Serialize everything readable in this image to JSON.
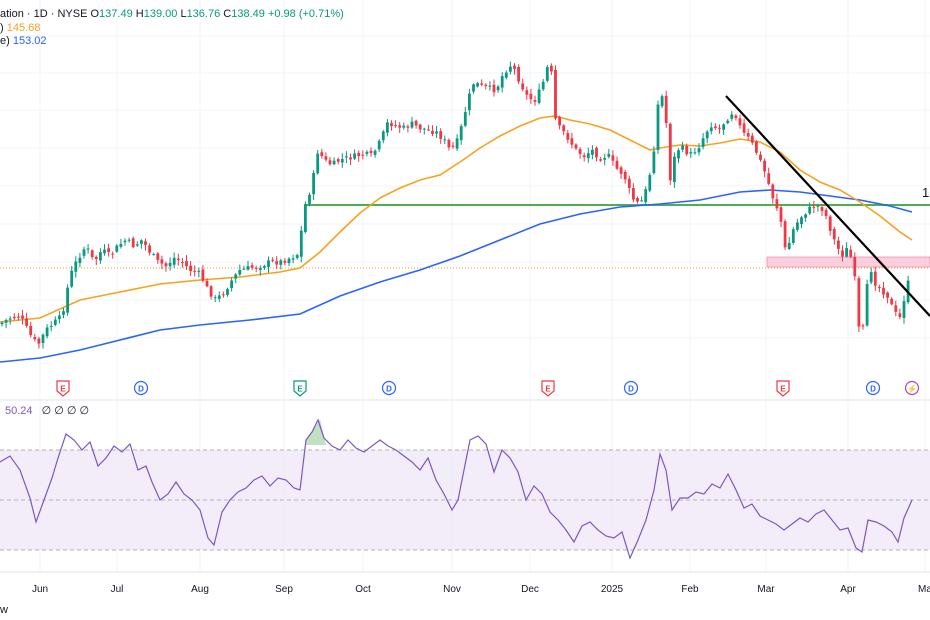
{
  "header": {
    "title_fragment": "ation · 1D · NYSE",
    "open_label": "O",
    "open": "137.49",
    "high_label": "H",
    "high": "139.00",
    "low_label": "L",
    "low": "136.76",
    "close_label": "C",
    "close": "138.49",
    "change": "+0.98 (+0.71%)",
    "ma1_fragment": ")",
    "ma1_value": "145.68",
    "ma2_fragment": "e)",
    "ma2_value": "153.02"
  },
  "rsi_legend": {
    "value": "50.24",
    "placeholders": "∅ ∅ ∅ ∅"
  },
  "x_axis_labels": [
    "Jun",
    "Jul",
    "Aug",
    "Sep",
    "Oct",
    "Nov",
    "Dec",
    "2025",
    "Feb",
    "Mar",
    "Apr",
    "Ma"
  ],
  "right_edge_label": "1",
  "events": [
    "E",
    "D",
    "E",
    "D",
    "E",
    "D",
    "E",
    "D",
    "⚡"
  ],
  "footer_fragment": "w",
  "colors": {
    "up": "#089981",
    "down": "#f23645",
    "ma_fast": "#f7a21b",
    "ma_slow": "#2962ff",
    "support": "#4caf50",
    "trendline": "#000000",
    "rsi": "#7e57c2",
    "rsi_band": "#ede7f6",
    "zone": "#f8bbd0",
    "price_line": "#f7a21b"
  }
}
